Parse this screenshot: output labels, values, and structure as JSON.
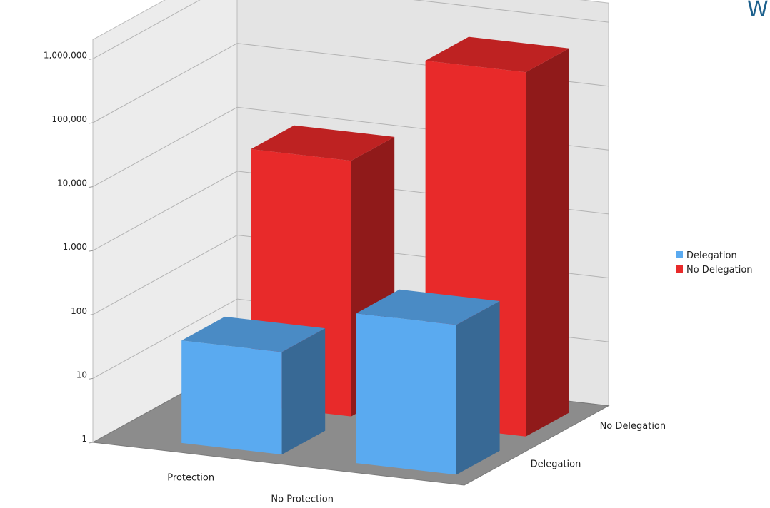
{
  "corner_text": "W",
  "chart_data": {
    "type": "bar",
    "title": "",
    "xlabel": "",
    "ylabel": "",
    "y_scale": "log",
    "ylim": [
      1,
      1000000
    ],
    "grid": true,
    "legend_position": "right",
    "y_tick_labels": [
      "1",
      "10",
      "100",
      "1,000",
      "10,000",
      "100,000",
      "1,000,000"
    ],
    "categories": [
      "Protection",
      "No Protection"
    ],
    "depth_labels": [
      "Delegation",
      "No Delegation"
    ],
    "series": [
      {
        "name": "Delegation",
        "color": "#5aaaf0",
        "values": [
          40,
          220
        ]
      },
      {
        "name": "No Delegation",
        "color": "#e82a2a",
        "values": [
          10000,
          500000
        ]
      }
    ]
  }
}
